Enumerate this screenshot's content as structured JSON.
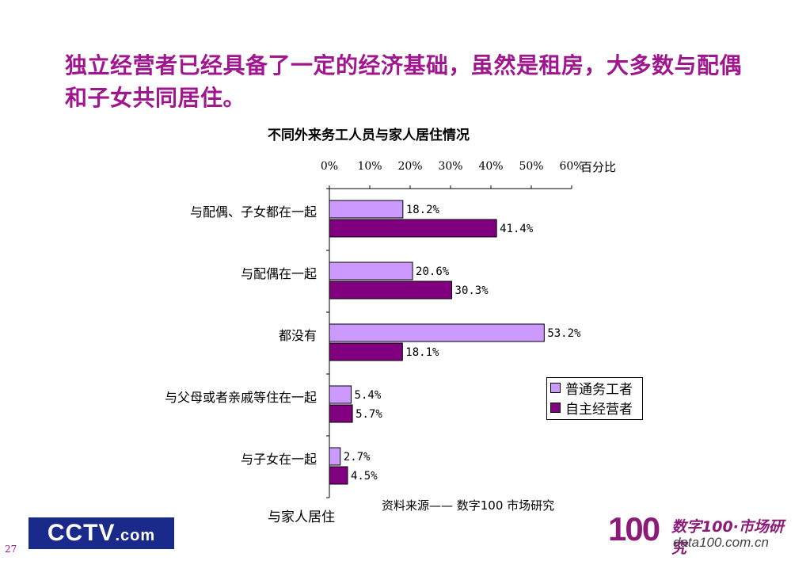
{
  "headline": "独立经营者已经具备了一定的经济基础，虽然是租房，大多数与配偶和子女共同居住。",
  "source": "资料来源——  数字100  市场研究",
  "page_number": "27",
  "logos": {
    "cctv": {
      "main": "CCTV",
      "suffix": ".com"
    },
    "data100": {
      "mark": "100",
      "cn": "数字100·市场研究",
      "url": "data100.com.cn"
    }
  },
  "colors": {
    "headline": "#a0168e",
    "series_1": "#cc99ff",
    "series_2": "#800080"
  },
  "chart_data": {
    "type": "bar",
    "orientation": "horizontal",
    "title": "不同外来务工人员与家人居住情况",
    "xlabel": "百分比",
    "ylabel": "与家人居住",
    "xlim": [
      0,
      60
    ],
    "x_ticks": [
      "0%",
      "10%",
      "20%",
      "30%",
      "40%",
      "50%",
      "60%"
    ],
    "x_axis_position": "top",
    "categories": [
      "与配偶、子女都在一起",
      "与配偶在一起",
      "都没有",
      "与父母或者亲戚等住在一起",
      "与子女在一起"
    ],
    "series": [
      {
        "name": "普通务工者",
        "values": [
          18.2,
          20.6,
          53.2,
          5.4,
          2.7
        ],
        "labels": [
          "18.2%",
          "20.6%",
          "53.2%",
          "5.4%",
          "2.7%"
        ]
      },
      {
        "name": "自主经营者",
        "values": [
          41.4,
          30.3,
          18.1,
          5.7,
          4.5
        ],
        "labels": [
          "41.4%",
          "30.3%",
          "18.1%",
          "5.7%",
          "4.5%"
        ]
      }
    ],
    "legend": "right",
    "grid": false
  }
}
